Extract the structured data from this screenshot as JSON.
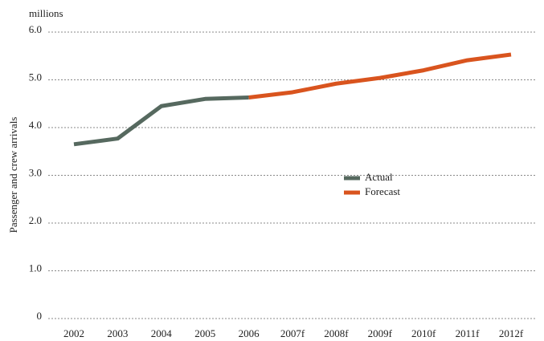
{
  "chart_data": {
    "type": "line",
    "unit_label": "millions",
    "y_label": "Passenger and crew arrivals",
    "categories": [
      "2002",
      "2003",
      "2004",
      "2005",
      "2006",
      "2007f",
      "2008f",
      "2009f",
      "2010f",
      "2011f",
      "2012f"
    ],
    "series": [
      {
        "name": "Actual",
        "color": "#56695f",
        "values": [
          3.65,
          3.77,
          4.45,
          4.6,
          4.63,
          null,
          null,
          null,
          null,
          null,
          null
        ]
      },
      {
        "name": "Forecast",
        "color": "#d9541e",
        "values": [
          null,
          null,
          null,
          null,
          4.63,
          4.74,
          4.92,
          5.04,
          5.2,
          5.41,
          5.53
        ]
      }
    ],
    "ylim": [
      0,
      6
    ],
    "yticks": [
      0,
      {
        "value": 1,
        "label": "1.0"
      },
      {
        "value": 2,
        "label": "2.0"
      },
      {
        "value": 3,
        "label": "3.0"
      },
      {
        "value": 4,
        "label": "4.0"
      },
      {
        "value": 5,
        "label": "5.0"
      },
      {
        "value": 6,
        "label": "6.0"
      }
    ],
    "grid": true,
    "legend": "center"
  }
}
